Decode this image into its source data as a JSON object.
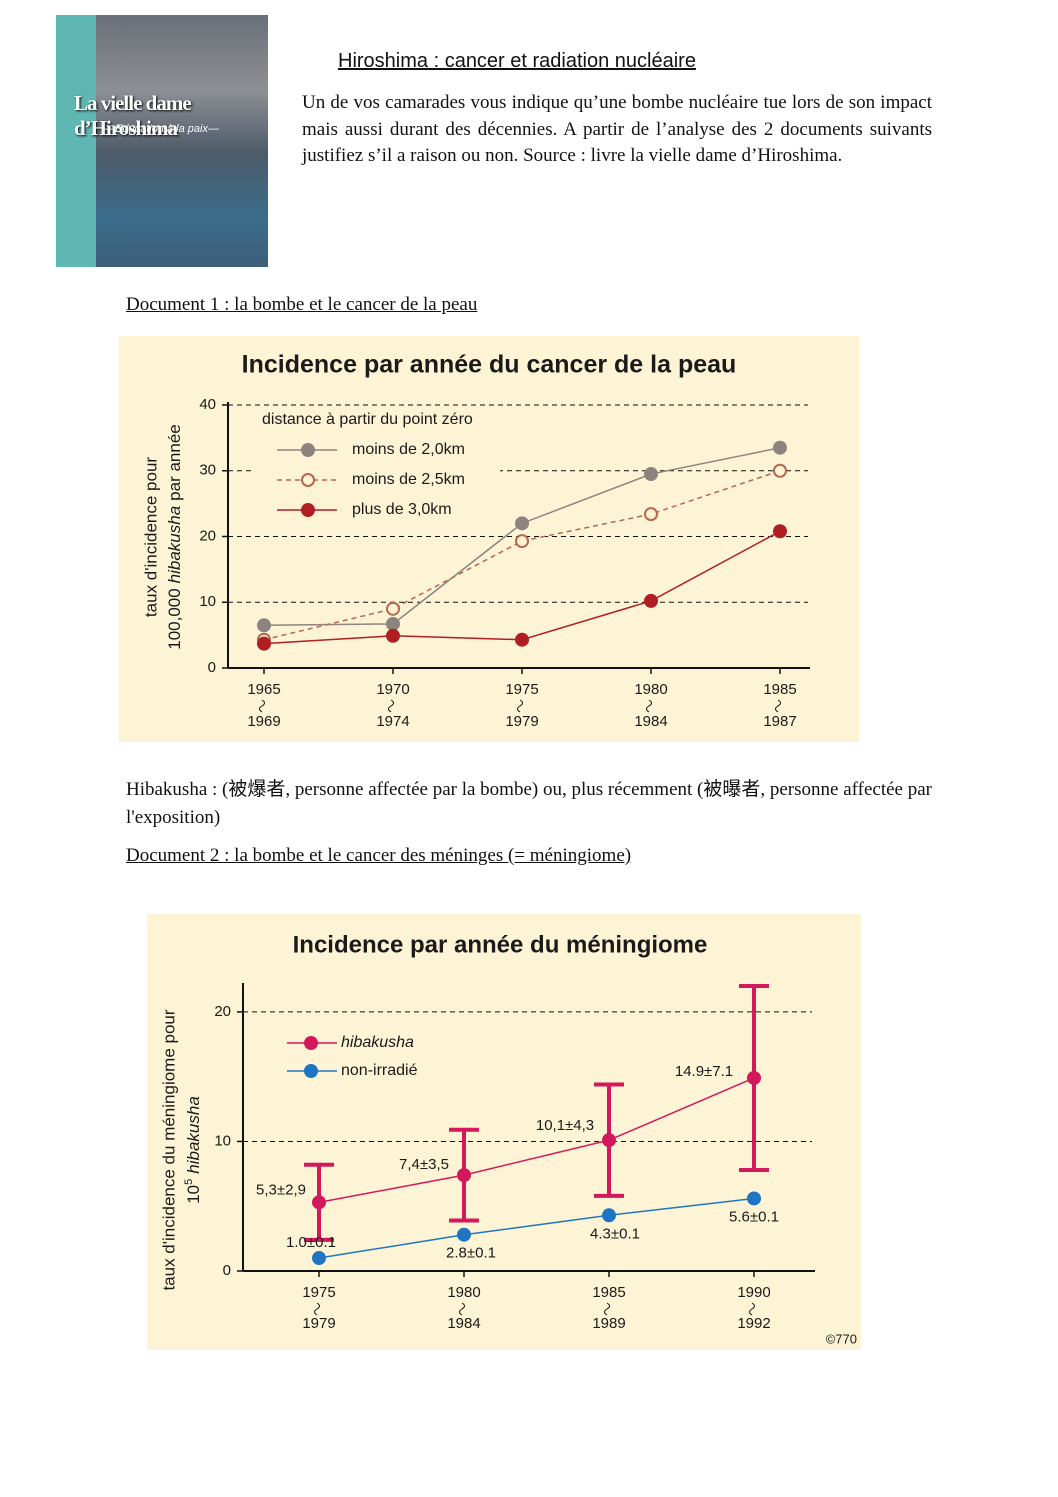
{
  "document": {
    "cover": {
      "title": "La vielle dame d’Hiroshima",
      "subtitle": "—Education à la paix—"
    },
    "title": "Hiroshima : cancer et radiation nucléaire",
    "intro": "Un de vos camarades vous indique qu’une bombe nucléaire tue lors de son impact mais aussi durant des décennies. A partir de l’analyse des 2 documents suivants justifiez s’il a raison ou non. Source : livre la vielle dame d’Hiroshima.",
    "doc1_heading": "Document 1 : la bombe et le cancer de la peau",
    "glossary_term": "Hibakusha",
    "glossary_text": ": (被爆者, personne affectée par la bombe) ou, plus récemment (被曝者, personne affectée par l'exposition)",
    "doc2_heading": "Document 2 : la bombe et le cancer des méninges (= méningiome)"
  },
  "chart_data": [
    {
      "type": "line",
      "title": "Incidence par année du cancer de la peau",
      "ylabel": [
        "taux d'incidence pour",
        "100,000",
        "hibakusha",
        "par année"
      ],
      "legend_title": "distance à partir du point zéro",
      "categories": [
        [
          "1965",
          "1969"
        ],
        [
          "1970",
          "1974"
        ],
        [
          "1975",
          "1979"
        ],
        [
          "1980",
          "1984"
        ],
        [
          "1985",
          "1987"
        ]
      ],
      "ylim": [
        0,
        40
      ],
      "yticks": [
        0,
        10,
        20,
        30,
        40
      ],
      "grid": true,
      "series": [
        {
          "name": "moins de 2,0km",
          "color": "#8d8480",
          "marker": "filled",
          "dashed": false,
          "values": [
            6.5,
            6.7,
            22,
            29.5,
            33.5
          ]
        },
        {
          "name": "moins de 2,5km",
          "color": "#b9654f",
          "marker": "open",
          "dashed": true,
          "values": [
            4.3,
            9,
            19.3,
            23.4,
            30
          ]
        },
        {
          "name": "plus de 3,0km",
          "color": "#b01e24",
          "marker": "filled",
          "dashed": false,
          "values": [
            3.7,
            4.9,
            4.3,
            10.2,
            20.8
          ]
        }
      ]
    },
    {
      "type": "line",
      "title": "Incidence par année du méningiome",
      "ylabel": [
        "taux d'incidence du méningiome pour",
        "10",
        "5",
        "hibakusha"
      ],
      "categories": [
        [
          "1975",
          "1979"
        ],
        [
          "1980",
          "1984"
        ],
        [
          "1985",
          "1989"
        ],
        [
          "1990",
          "1992"
        ]
      ],
      "ylim": [
        0,
        22
      ],
      "yticks": [
        0,
        10,
        20
      ],
      "grid": true,
      "credit": "©770",
      "series": [
        {
          "name": "hibakusha",
          "italic": true,
          "color": "#d2195b",
          "marker": "filled",
          "dashed": false,
          "values": [
            5.3,
            7.4,
            10.1,
            14.9
          ],
          "errors": [
            2.9,
            3.5,
            4.3,
            7.1
          ],
          "value_labels": [
            "5,3±2,9",
            "7,4±3,5",
            "10,1±4,3",
            "14.9±7.1"
          ]
        },
        {
          "name": "non-irradié",
          "italic": false,
          "color": "#1f74c4",
          "marker": "filled",
          "dashed": false,
          "values": [
            1.0,
            2.8,
            4.3,
            5.6
          ],
          "errors": [
            0.1,
            0.1,
            0.1,
            0.1
          ],
          "value_labels": [
            "1.0±0.1",
            "2.8±0.1",
            "4.3±0.1",
            "5.6±0.1"
          ]
        }
      ]
    }
  ]
}
